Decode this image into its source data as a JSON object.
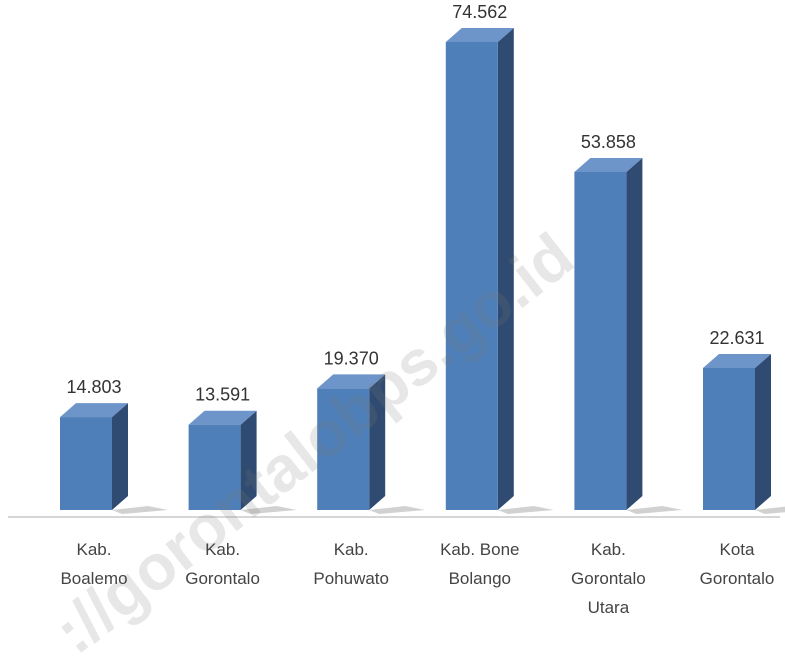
{
  "chart_data": {
    "type": "bar3d",
    "categories": [
      "Kab. Boalemo",
      "Kab. Gorontalo",
      "Kab. Pohuwato",
      "Kab. Bone Bolango",
      "Kab. Gorontalo Utara",
      "Kota Gorontalo"
    ],
    "values": [
      14803,
      13591,
      19370,
      74562,
      53858,
      22631
    ],
    "value_labels": [
      "14.803",
      "13.591",
      "19.370",
      "74.562",
      "53.858",
      "22.631"
    ],
    "color": "#4f7fb8",
    "watermark": "://gorontalobps.go.id"
  }
}
